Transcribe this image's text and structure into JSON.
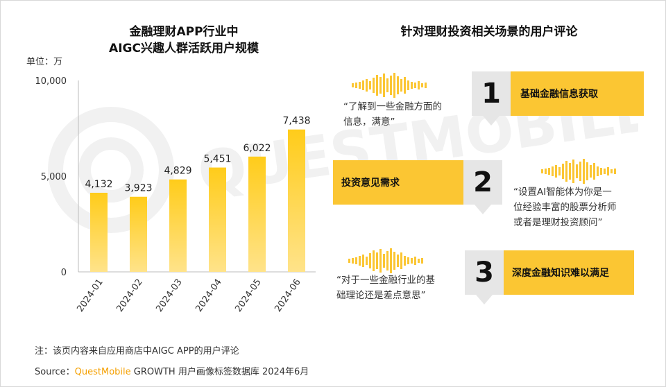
{
  "chart_data": {
    "type": "bar",
    "title_line1": "金融理财APP行业中",
    "title_line2": "AIGC兴趣人群活跃用户规模",
    "unit_label": "单位：万",
    "categories": [
      "2024-01",
      "2024-02",
      "2024-03",
      "2024-04",
      "2024-05",
      "2024-06"
    ],
    "values": [
      4132,
      3923,
      4829,
      5451,
      6022,
      7438
    ],
    "value_labels": [
      "4,132",
      "3,923",
      "4,829",
      "5,451",
      "6,022",
      "7,438"
    ],
    "yticks": [
      "10,000",
      "5,000",
      "0"
    ],
    "ylim": [
      0,
      10000
    ],
    "bar_color": "#fbc633",
    "bar_color_light": "#ffd95c"
  },
  "right_panel": {
    "title": "针对理财投资相关场景的用户评论",
    "items": [
      {
        "num": "1",
        "label": "基础金融信息获取",
        "quote_lines": [
          "“了解到一些金融方面的",
          "信息，满意”"
        ]
      },
      {
        "num": "2",
        "label": "投资意见需求",
        "quote_lines": [
          "“设置AI智能体为你是一",
          "位经验丰富的股票分析师",
          "或者是理财投资顾问”"
        ]
      },
      {
        "num": "3",
        "label": "深度金融知识难以满足",
        "quote_lines": [
          "“对于一些金融行业的基",
          "础理论还是差点意思”"
        ]
      }
    ]
  },
  "footer": {
    "note": "注：该页内容来自应用商店中AIGC APP的用户评论",
    "source_prefix": "Source：",
    "source_brand": "QuestMobile",
    "source_rest": " GROWTH 用户画像标签数据库 2024年6月"
  },
  "watermark_text": "QUESTMOBILE",
  "colors": {
    "accent": "#fbc633",
    "num_box": "#e6e6e6",
    "brand": "#f5a000"
  }
}
